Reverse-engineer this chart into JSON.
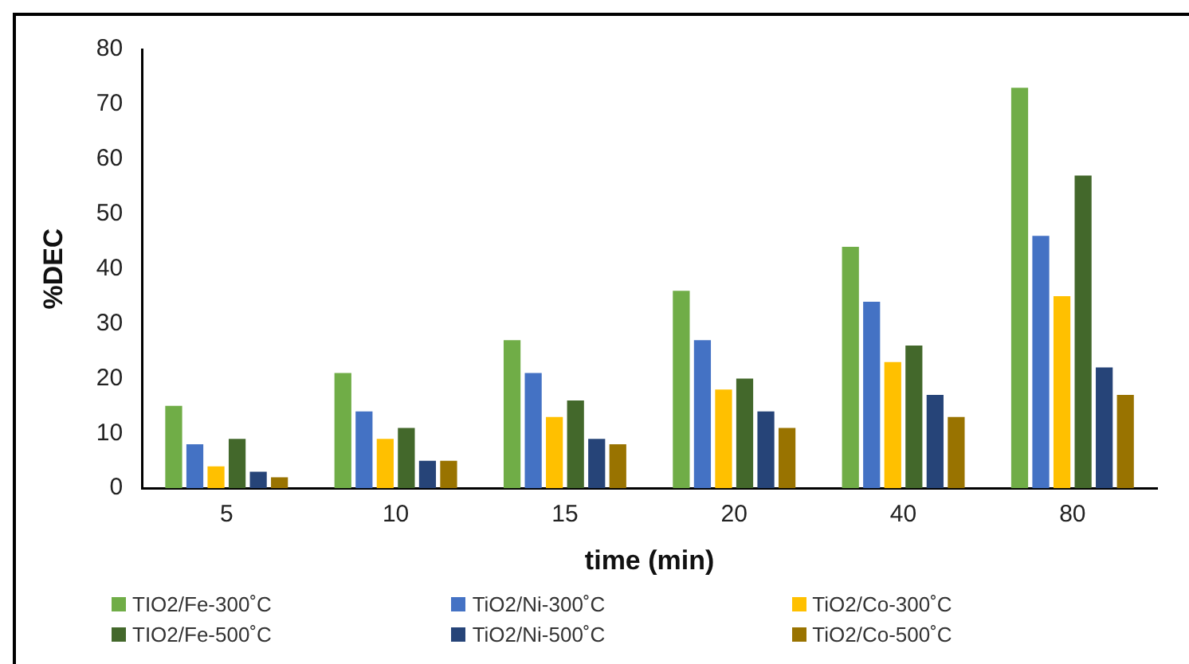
{
  "chart_data": {
    "type": "bar",
    "xlabel": "time (min)",
    "ylabel": "%DEC",
    "categories": [
      "5",
      "10",
      "15",
      "20",
      "40",
      "80"
    ],
    "series": [
      {
        "name": "TIO2/Fe-300˚C",
        "color": "#70ad47",
        "values": [
          15,
          21,
          27,
          36,
          44,
          73
        ]
      },
      {
        "name": "TiO2/Ni-300˚C",
        "color": "#4472c4",
        "values": [
          8,
          14,
          21,
          27,
          34,
          46
        ]
      },
      {
        "name": "TiO2/Co-300˚C",
        "color": "#ffc000",
        "values": [
          4,
          9,
          13,
          18,
          23,
          35
        ]
      },
      {
        "name": "TIO2/Fe-500˚C",
        "color": "#43682b",
        "values": [
          9,
          11,
          16,
          20,
          26,
          57
        ]
      },
      {
        "name": "TiO2/Ni-500˚C",
        "color": "#264478",
        "values": [
          3,
          5,
          9,
          14,
          17,
          22
        ]
      },
      {
        "name": "TiO2/Co-500˚C",
        "color": "#997300",
        "values": [
          2,
          5,
          8,
          11,
          13,
          17
        ]
      }
    ],
    "ylim": [
      0,
      80
    ],
    "yticks": [
      0,
      10,
      20,
      30,
      40,
      50,
      60,
      70,
      80
    ],
    "grid": false,
    "legend": "bottom"
  }
}
